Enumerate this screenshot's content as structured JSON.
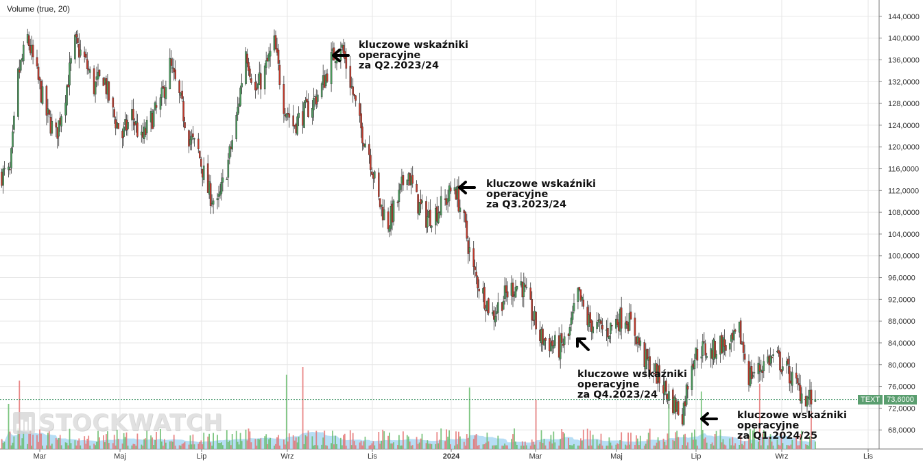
{
  "indicator_label": "Volume (true, 20)",
  "watermark": {
    "text": "STOCKWATCH",
    "icon": "bar-chart-logo-icon"
  },
  "price_tag": {
    "label": "TEXT",
    "value": "73,6000"
  },
  "colors": {
    "up": "#4a9a5c",
    "down": "#c0392b",
    "grid": "#e6e6e6",
    "volume_avg": "#9fd3f2",
    "last_price_line": "#2e8b57",
    "tag": "#5a9e6f"
  },
  "annotations": [
    {
      "lines": [
        "kluczowe wskaźniki",
        "operacyjne",
        "za Q2.2023/24"
      ],
      "arrow": "left"
    },
    {
      "lines": [
        "kluczowe wskaźniki",
        "operacyjne",
        "za Q3.2023/24"
      ],
      "arrow": "left"
    },
    {
      "lines": [
        "kluczowe wskaźniki",
        "operacyjne",
        "za Q4.2023/24"
      ],
      "arrow": "up-left"
    },
    {
      "lines": [
        "kluczowe wskaźniki",
        "operacyjne",
        "za Q1.2024/25"
      ],
      "arrow": "left"
    }
  ],
  "chart_data": {
    "type": "candlestick",
    "x_ticks": [
      "Mar",
      "Maj",
      "Lip",
      "Wrz",
      "Lis",
      "2024",
      "Mar",
      "Maj",
      "Lip",
      "Wrz",
      "Lis"
    ],
    "y_ticks": [
      "144,0000",
      "140,0000",
      "136,0000",
      "132,0000",
      "128,0000",
      "124,0000",
      "120,0000",
      "116,0000",
      "112,0000",
      "108,0000",
      "104,0000",
      "100,0000",
      "96,0000",
      "92,0000",
      "88,0000",
      "84,0000",
      "80,0000",
      "76,0000",
      "72,0000",
      "68,0000"
    ],
    "ylim": [
      64.5,
      146
    ],
    "last_price": 73.6,
    "start_date": "2023-02-01",
    "end_date": "2024-11-20",
    "price_path": [
      [
        "2023-02-01",
        115
      ],
      [
        "2023-02-07",
        115
      ],
      [
        "2023-02-13",
        133
      ],
      [
        "2023-02-20",
        140
      ],
      [
        "2023-02-27",
        133
      ],
      [
        "2023-03-06",
        126
      ],
      [
        "2023-03-13",
        122
      ],
      [
        "2023-03-20",
        130
      ],
      [
        "2023-03-27",
        139
      ],
      [
        "2023-04-03",
        136
      ],
      [
        "2023-04-10",
        131
      ],
      [
        "2023-04-17",
        133
      ],
      [
        "2023-04-24",
        126
      ],
      [
        "2023-05-01",
        122
      ],
      [
        "2023-05-08",
        126
      ],
      [
        "2023-05-15",
        121
      ],
      [
        "2023-05-22",
        125
      ],
      [
        "2023-05-29",
        128
      ],
      [
        "2023-06-05",
        135
      ],
      [
        "2023-06-12",
        129
      ],
      [
        "2023-06-19",
        122
      ],
      [
        "2023-06-26",
        119
      ],
      [
        "2023-07-03",
        112
      ],
      [
        "2023-07-10",
        109
      ],
      [
        "2023-07-17",
        116
      ],
      [
        "2023-07-24",
        125
      ],
      [
        "2023-07-31",
        138
      ],
      [
        "2023-08-07",
        130
      ],
      [
        "2023-08-14",
        134
      ],
      [
        "2023-08-21",
        139
      ],
      [
        "2023-08-28",
        128
      ],
      [
        "2023-09-04",
        124
      ],
      [
        "2023-09-11",
        126
      ],
      [
        "2023-09-18",
        128
      ],
      [
        "2023-09-25",
        131
      ],
      [
        "2023-10-02",
        136
      ],
      [
        "2023-10-09",
        139
      ],
      [
        "2023-10-16",
        132
      ],
      [
        "2023-10-23",
        124
      ],
      [
        "2023-10-30",
        119
      ],
      [
        "2023-11-06",
        110
      ],
      [
        "2023-11-13",
        106
      ],
      [
        "2023-11-20",
        110
      ],
      [
        "2023-11-27",
        116
      ],
      [
        "2023-12-04",
        110
      ],
      [
        "2023-12-11",
        107
      ],
      [
        "2023-12-18",
        108
      ],
      [
        "2023-12-25",
        110
      ],
      [
        "2024-01-01",
        113
      ],
      [
        "2024-01-08",
        106
      ],
      [
        "2024-01-15",
        97
      ],
      [
        "2024-01-22",
        93
      ],
      [
        "2024-01-29",
        89
      ],
      [
        "2024-02-05",
        92
      ],
      [
        "2024-02-12",
        94
      ],
      [
        "2024-02-19",
        95
      ],
      [
        "2024-02-26",
        90
      ],
      [
        "2024-03-04",
        85
      ],
      [
        "2024-03-11",
        84
      ],
      [
        "2024-03-18",
        83
      ],
      [
        "2024-03-25",
        85
      ],
      [
        "2024-04-01",
        93
      ],
      [
        "2024-04-08",
        88
      ],
      [
        "2024-04-15",
        87
      ],
      [
        "2024-04-22",
        86
      ],
      [
        "2024-04-29",
        88
      ],
      [
        "2024-05-06",
        89
      ],
      [
        "2024-05-13",
        86
      ],
      [
        "2024-05-20",
        81
      ],
      [
        "2024-05-27",
        79
      ],
      [
        "2024-06-03",
        76
      ],
      [
        "2024-06-10",
        73
      ],
      [
        "2024-06-17",
        71
      ],
      [
        "2024-06-24",
        81
      ],
      [
        "2024-07-01",
        83
      ],
      [
        "2024-07-08",
        82
      ],
      [
        "2024-07-15",
        84
      ],
      [
        "2024-07-22",
        83
      ],
      [
        "2024-07-29",
        86
      ],
      [
        "2024-08-05",
        78
      ],
      [
        "2024-08-12",
        79
      ],
      [
        "2024-08-19",
        81
      ],
      [
        "2024-08-26",
        81
      ],
      [
        "2024-09-02",
        79
      ],
      [
        "2024-09-09",
        76
      ],
      [
        "2024-09-16",
        74
      ],
      [
        "2024-09-23",
        73.6
      ]
    ]
  }
}
